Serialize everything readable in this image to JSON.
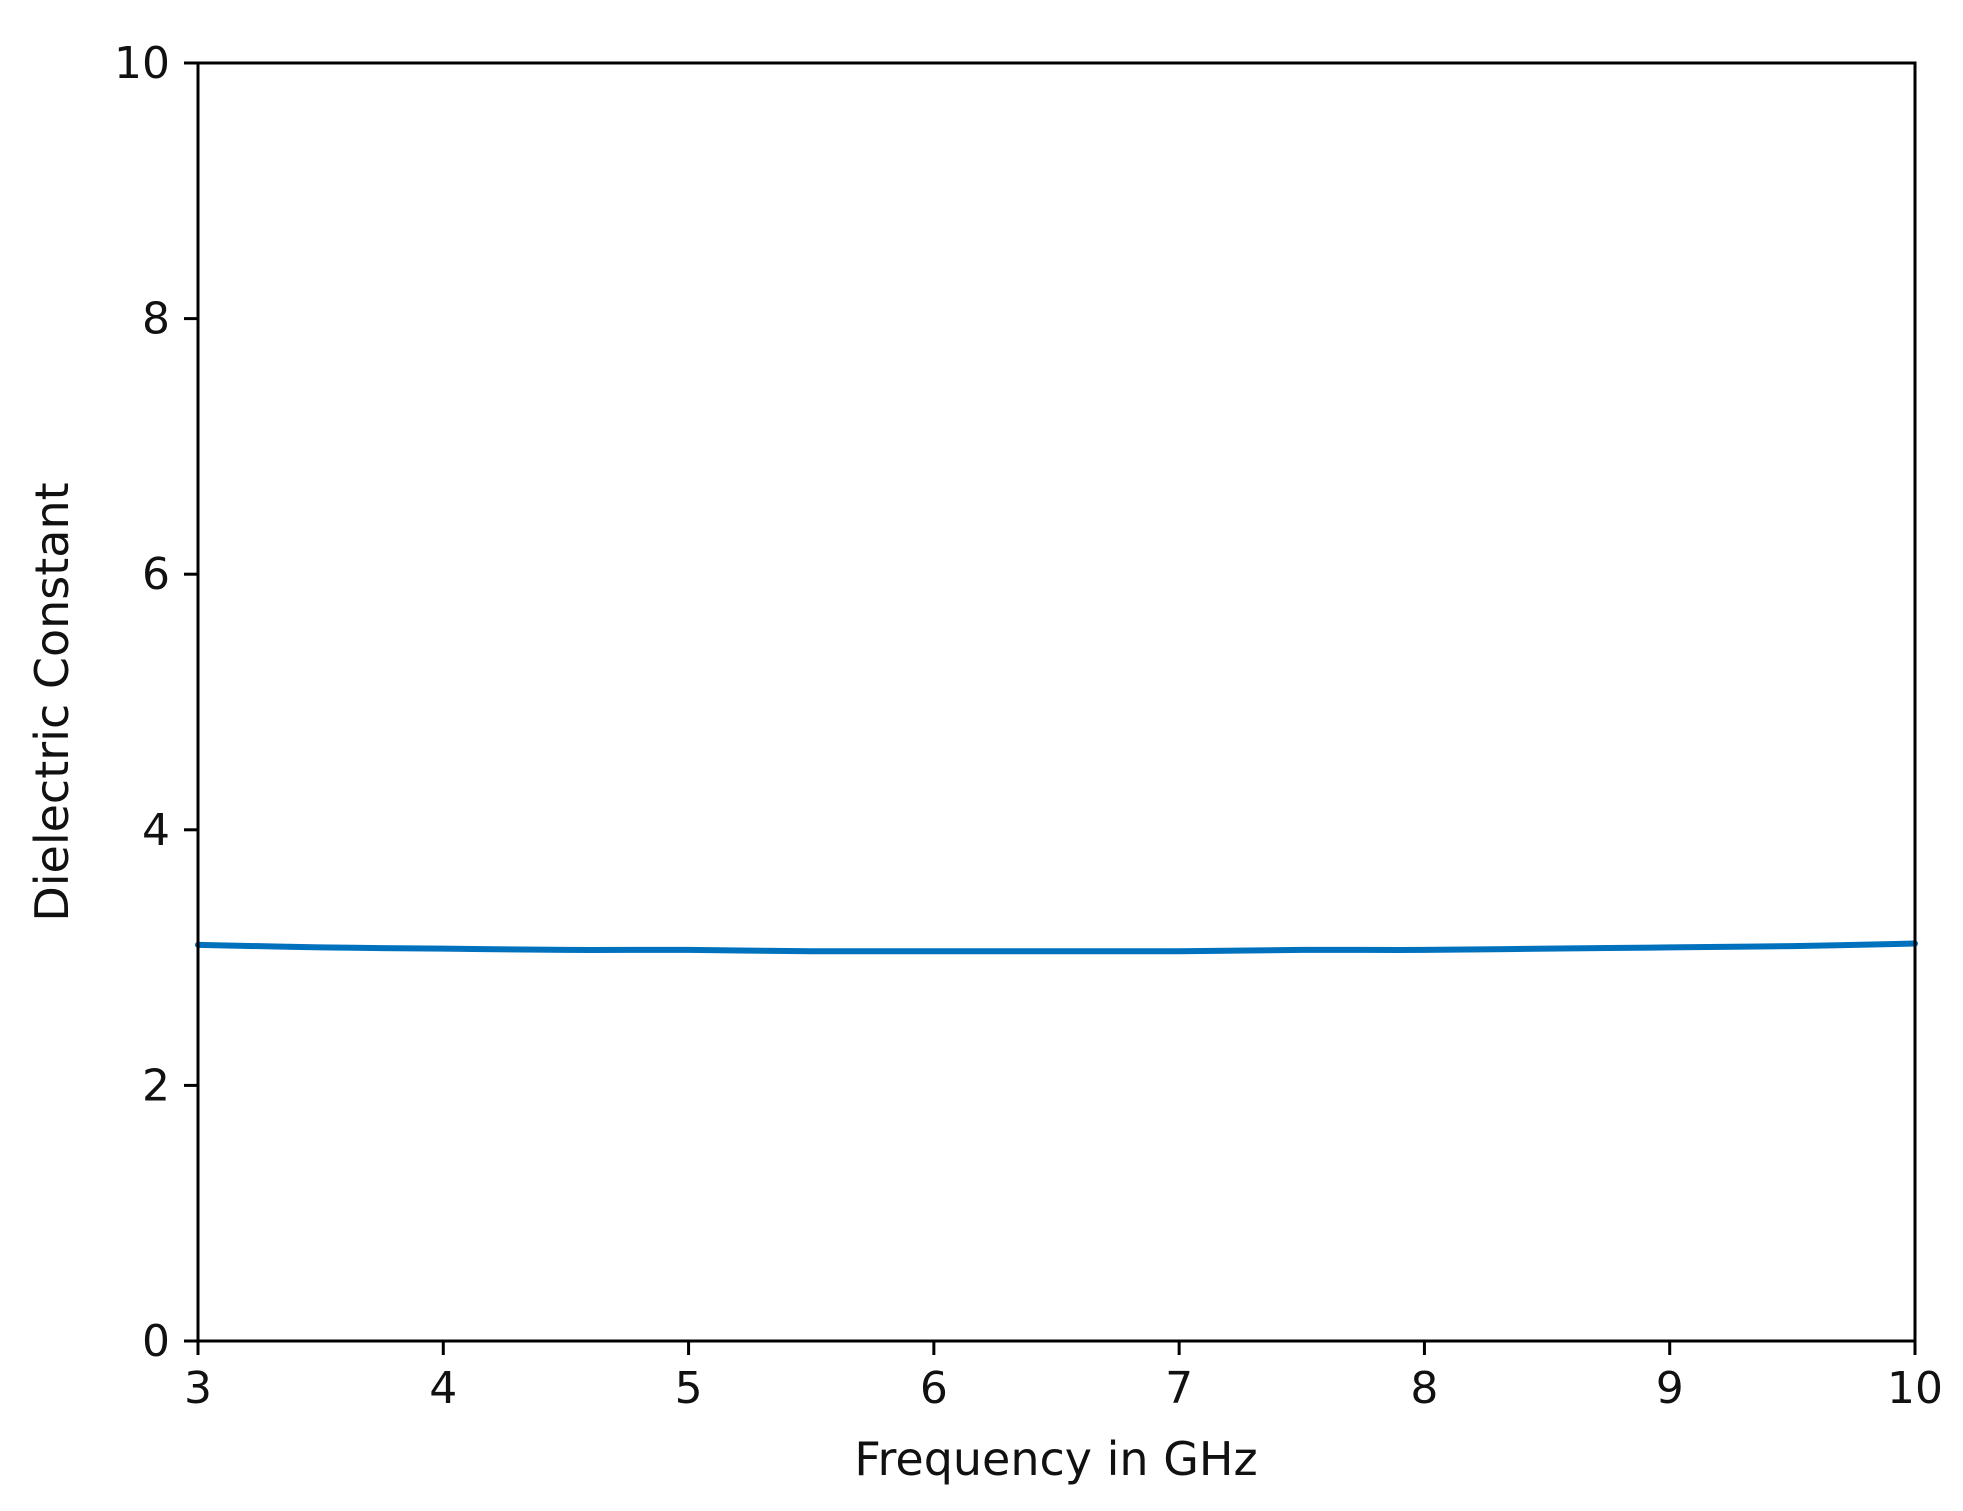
{
  "chart_data": {
    "type": "line",
    "title": "",
    "xlabel": "Frequency in GHz",
    "ylabel": "Dielectric Constant",
    "xlim": [
      3,
      10
    ],
    "ylim": [
      0,
      10
    ],
    "xticks": [
      "3",
      "4",
      "5",
      "6",
      "7",
      "8",
      "9",
      "10"
    ],
    "yticks": [
      "0",
      "2",
      "4",
      "6",
      "8",
      "10"
    ],
    "grid": false,
    "legend": "none",
    "series": [
      {
        "color": "#0072bd",
        "x": [
          3.0,
          3.5,
          4.0,
          4.5,
          5.0,
          5.5,
          6.0,
          6.5,
          7.0,
          7.5,
          8.0,
          8.5,
          9.0,
          9.5,
          10.0
        ],
        "y": [
          3.1,
          3.08,
          3.07,
          3.06,
          3.06,
          3.05,
          3.05,
          3.05,
          3.05,
          3.06,
          3.06,
          3.07,
          3.08,
          3.09,
          3.11
        ]
      }
    ]
  }
}
